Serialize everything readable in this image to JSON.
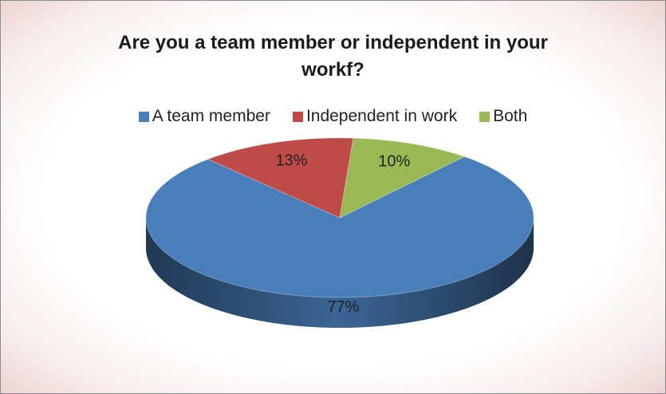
{
  "chart_data": {
    "type": "pie3d",
    "title": "Are you a team member or independent in your workf?",
    "categories": [
      "A team member",
      "Independent in work",
      "Both"
    ],
    "values": [
      77,
      13,
      10
    ],
    "value_labels": [
      "77%",
      "13%",
      "10%"
    ],
    "colors": [
      "#4a7ebb",
      "#be4b48",
      "#98b954"
    ],
    "legend": "top"
  }
}
